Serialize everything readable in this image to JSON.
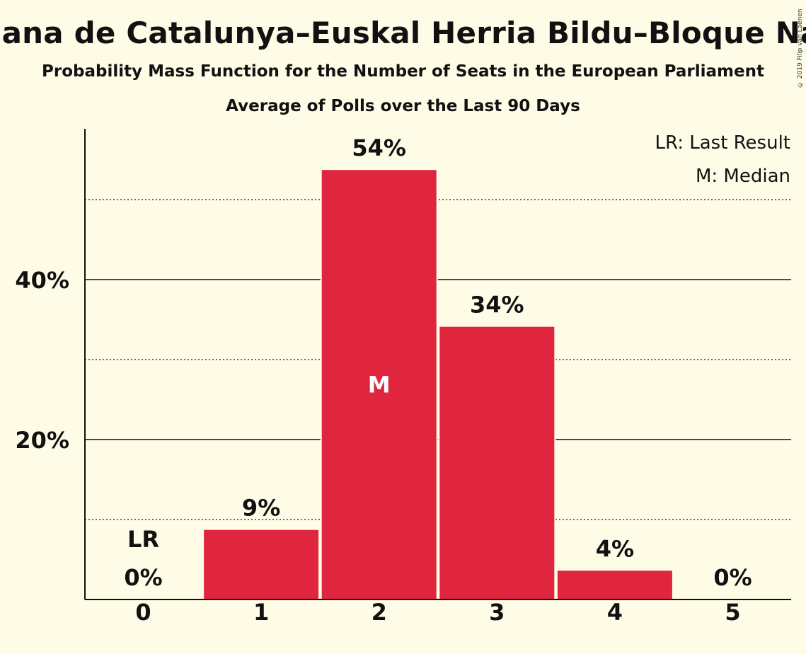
{
  "chart_data": {
    "type": "bar",
    "title": "Esquerra Republicana de Catalunya–Euskal Herria Bildu–Bloque Nacionalista Galego",
    "subtitle": "Probability Mass Function for the Number of Seats in the European Parliament",
    "subtitle2": "Average of Polls over the Last 90 Days",
    "xlabel": "",
    "ylabel": "",
    "categories": [
      "0",
      "1",
      "2",
      "3",
      "4",
      "5"
    ],
    "values": [
      0,
      8.7,
      53.7,
      34.1,
      3.6,
      0
    ],
    "value_labels": [
      "0%",
      "9%",
      "54%",
      "34%",
      "4%",
      "0%"
    ],
    "ylim": [
      0,
      59
    ],
    "yticks_major": [
      20,
      40
    ],
    "ytick_labels": [
      "20%",
      "40%"
    ],
    "yticks_minor": [
      10,
      30,
      50
    ],
    "last_result_index": 0,
    "median_index": 2,
    "last_result_marker": "LR",
    "median_marker": "M",
    "legend": [
      "LR: Last Result",
      "M: Median"
    ],
    "legend_position": "top-right",
    "bar_color": "#e0253f",
    "background_color": "#fefce6",
    "copyright": "© 2019 Filip van Laenen"
  }
}
